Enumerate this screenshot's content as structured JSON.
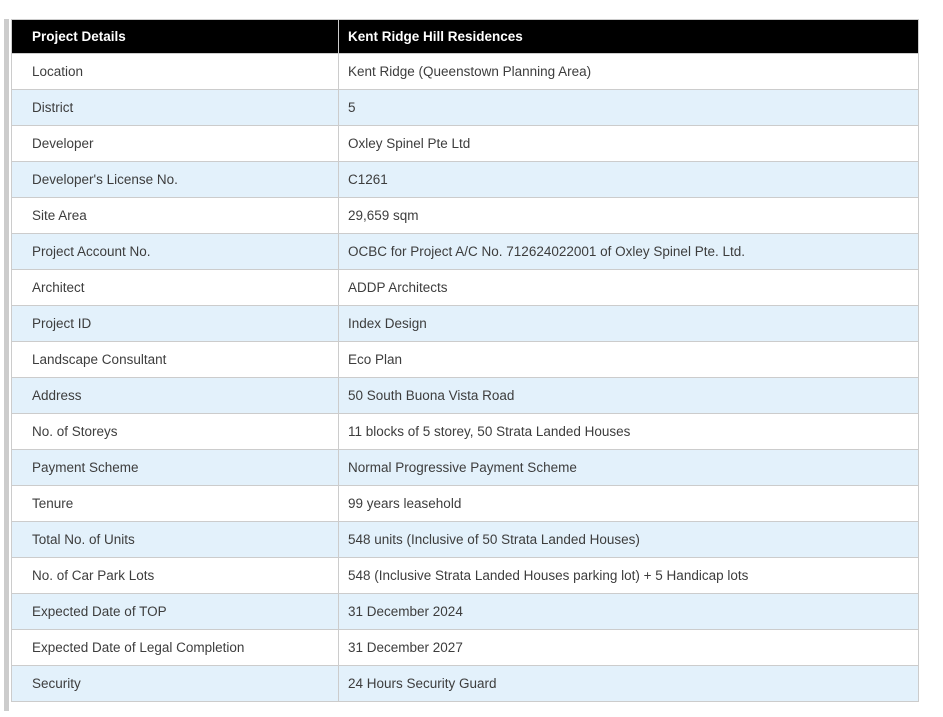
{
  "table": {
    "colors": {
      "header_bg": "#000000",
      "header_text": "#ffffff",
      "row_bg": "#ffffff",
      "row_alt_bg": "#e3f1fb",
      "border": "#cccccc",
      "cell_text": "#3d3d3d"
    },
    "header": {
      "col1": "Project Details",
      "col2": "Kent Ridge Hill Residences"
    },
    "rows": [
      {
        "label": "Location",
        "value": "Kent Ridge (Queenstown Planning Area)"
      },
      {
        "label": "District",
        "value": "5"
      },
      {
        "label": "Developer",
        "value": "Oxley Spinel Pte Ltd"
      },
      {
        "label": "Developer's License No.",
        "value": "C1261"
      },
      {
        "label": "Site Area",
        "value": "29,659 sqm"
      },
      {
        "label": "Project Account No.",
        "value": "OCBC for Project A/C No. 712624022001 of Oxley Spinel Pte. Ltd."
      },
      {
        "label": "Architect",
        "value": "ADDP Architects"
      },
      {
        "label": "Project ID",
        "value": "Index Design"
      },
      {
        "label": "Landscape Consultant",
        "value": "Eco Plan"
      },
      {
        "label": "Address",
        "value": "50 South Buona Vista Road"
      },
      {
        "label": "No. of Storeys",
        "value": "11 blocks of 5 storey, 50 Strata Landed Houses"
      },
      {
        "label": "Payment Scheme",
        "value": "Normal Progressive Payment Scheme"
      },
      {
        "label": "Tenure",
        "value": "99 years leasehold"
      },
      {
        "label": "Total No. of Units",
        "value": "548 units (Inclusive of 50 Strata Landed Houses)"
      },
      {
        "label": "No. of Car Park Lots",
        "value": "548 (Inclusive Strata Landed Houses parking lot) + 5 Handicap lots"
      },
      {
        "label": "Expected Date of TOP",
        "value": "31 December 2024"
      },
      {
        "label": "Expected Date of Legal Completion",
        "value": "31 December 2027"
      },
      {
        "label": "Security",
        "value": "24 Hours Security Guard"
      }
    ]
  }
}
